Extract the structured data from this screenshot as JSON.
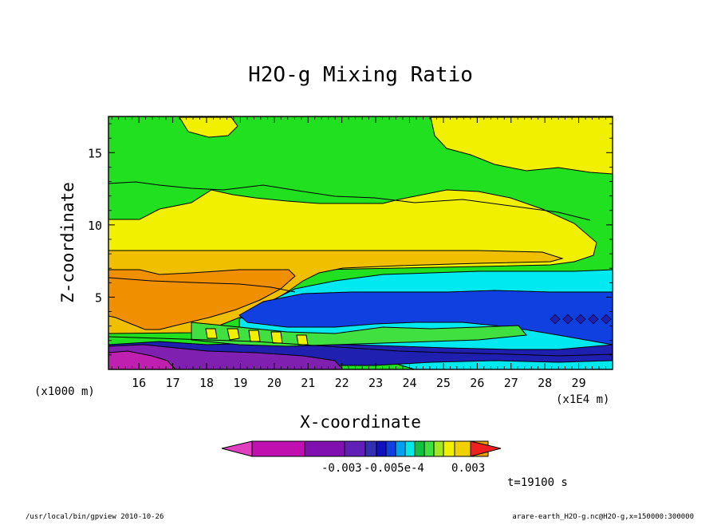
{
  "chart_data": {
    "type": "heatmap",
    "title": "H2O-g Mixing Ratio",
    "xlabel": "X-coordinate",
    "ylabel": "Z-coordinate",
    "x_scale_label": "(x1E4 m)",
    "y_scale_label": "(x1000 m)",
    "x_ticks": [
      "16",
      "17",
      "18",
      "19",
      "20",
      "21",
      "22",
      "23",
      "24",
      "25",
      "26",
      "27",
      "28",
      "29"
    ],
    "y_ticks": [
      "5",
      "10",
      "15"
    ],
    "xlim": [
      15.1,
      30.0
    ],
    "ylim": [
      0.0,
      17.5
    ],
    "colorbar": {
      "labels": [
        "-0.003",
        "-0.005e-4",
        "0.003"
      ],
      "colors": [
        "#e040c0",
        "#c010b0",
        "#8010b0",
        "#6020b8",
        "#3030b0",
        "#1010c0",
        "#1040e0",
        "#00a0f0",
        "#00e8e8",
        "#10c040",
        "#40e040",
        "#a0e820",
        "#f0f000",
        "#f0d000",
        "#f0a000",
        "#f08000",
        "#f02020"
      ]
    },
    "time_label": "t=19100 s",
    "contour_levels": [
      {
        "name": "green-background",
        "color": "#20e020"
      },
      {
        "name": "yellow-band",
        "color": "#f0f000"
      },
      {
        "name": "light-orange-band",
        "color": "#f0c000"
      },
      {
        "name": "orange-band",
        "color": "#f09000"
      },
      {
        "name": "cyan-band",
        "color": "#00e8f0"
      },
      {
        "name": "blue-band",
        "color": "#1040e0"
      },
      {
        "name": "dark-blue-band",
        "color": "#2020b0"
      },
      {
        "name": "purple-band",
        "color": "#8020b0"
      },
      {
        "name": "magenta-band",
        "color": "#c020b0"
      }
    ]
  },
  "footer": {
    "left": "/usr/local/bin/gpview  2010-10-26",
    "right": "arare-earth_H2O-g.nc@H2O-g,x=150000:300000"
  }
}
